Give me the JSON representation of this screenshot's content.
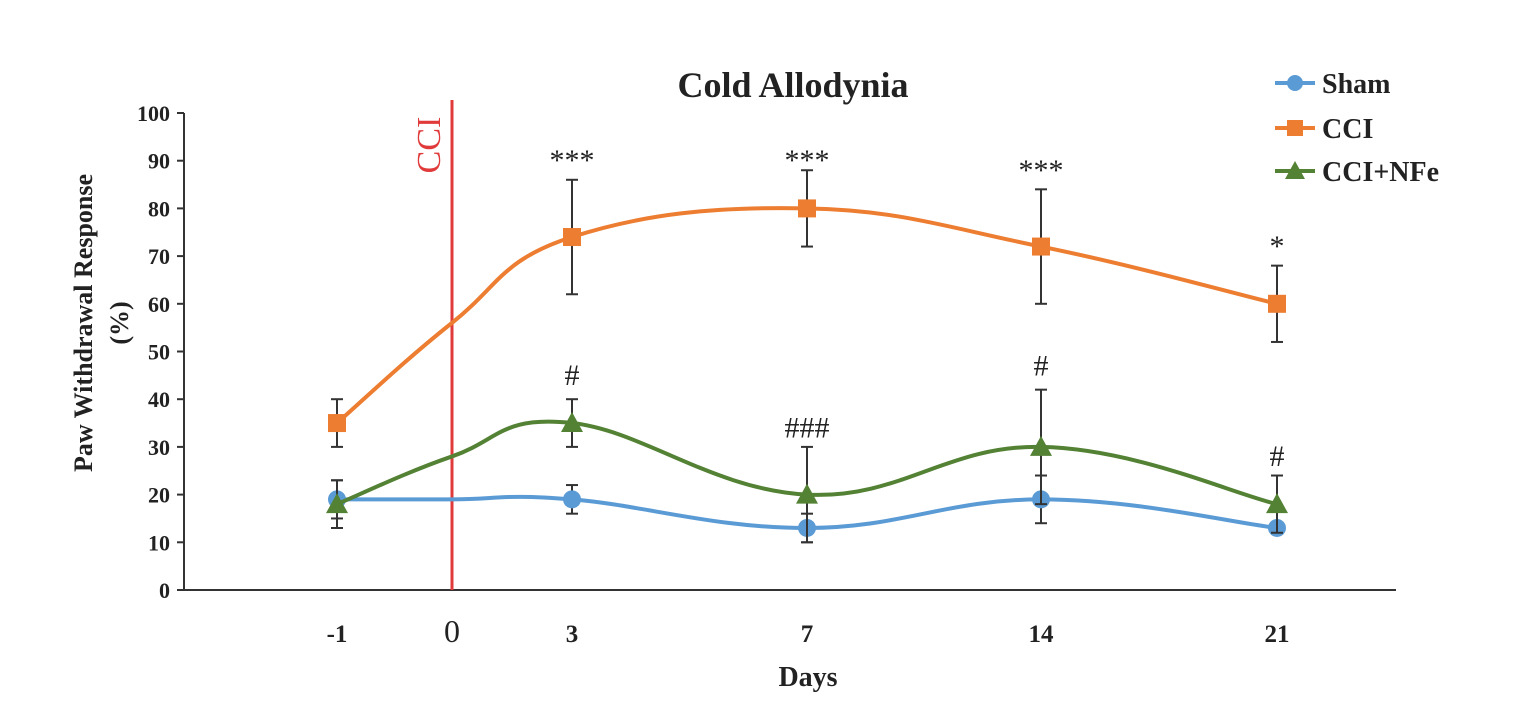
{
  "chart_data": {
    "type": "line",
    "title": "Cold Allodynia",
    "xlabel": "Days",
    "ylabel_lines": [
      "Paw Withdrawal  Response",
      "(%)"
    ],
    "ylim": [
      0,
      100
    ],
    "yticks": [
      0,
      10,
      20,
      30,
      40,
      50,
      60,
      70,
      80,
      90,
      100
    ],
    "xticks": [
      {
        "value": -1,
        "label": "-1"
      },
      {
        "value": 0,
        "label": "0",
        "color": "#e03a3a"
      },
      {
        "value": 3,
        "label": "3"
      },
      {
        "value": 7,
        "label": "7"
      },
      {
        "value": 14,
        "label": "14"
      },
      {
        "value": 21,
        "label": "21"
      }
    ],
    "event_marker": {
      "x": 0,
      "label": "CCI",
      "color": "#e03a3a"
    },
    "grid": false,
    "legend_position": "top-right",
    "series": [
      {
        "name": "Sham",
        "marker": "circle",
        "color": "#5b9bd5",
        "x": [
          -1,
          3,
          7,
          14,
          21
        ],
        "y": [
          19,
          19,
          13,
          19,
          13
        ],
        "err": [
          4,
          3,
          3,
          5,
          0
        ],
        "interpolated": [
          {
            "x": 0,
            "y": 19
          }
        ]
      },
      {
        "name": "CCI",
        "marker": "square",
        "color": "#ed7d31",
        "x": [
          -1,
          3,
          7,
          14,
          21
        ],
        "y": [
          35,
          74,
          80,
          72,
          60
        ],
        "err": [
          5,
          12,
          8,
          12,
          8
        ],
        "interpolated": [
          {
            "x": 0,
            "y": 56
          }
        ]
      },
      {
        "name": "CCI+NFe",
        "marker": "triangle",
        "color": "#548235",
        "x": [
          -1,
          3,
          7,
          14,
          21
        ],
        "y": [
          18,
          35,
          20,
          30,
          18
        ],
        "err": [
          5,
          5,
          10,
          12,
          6
        ],
        "interpolated": [
          {
            "x": 0,
            "y": 28
          }
        ]
      }
    ],
    "annotations": [
      {
        "x": 3,
        "y": 88,
        "text": "***"
      },
      {
        "x": 7,
        "y": 88,
        "text": "***"
      },
      {
        "x": 14,
        "y": 86,
        "text": "***"
      },
      {
        "x": 21,
        "y": 70,
        "text": "*"
      },
      {
        "x": 3,
        "y": 43,
        "text": "#"
      },
      {
        "x": 7,
        "y": 32,
        "text": "###"
      },
      {
        "x": 14,
        "y": 45,
        "text": "#"
      },
      {
        "x": 21,
        "y": 26,
        "text": "#"
      }
    ]
  }
}
